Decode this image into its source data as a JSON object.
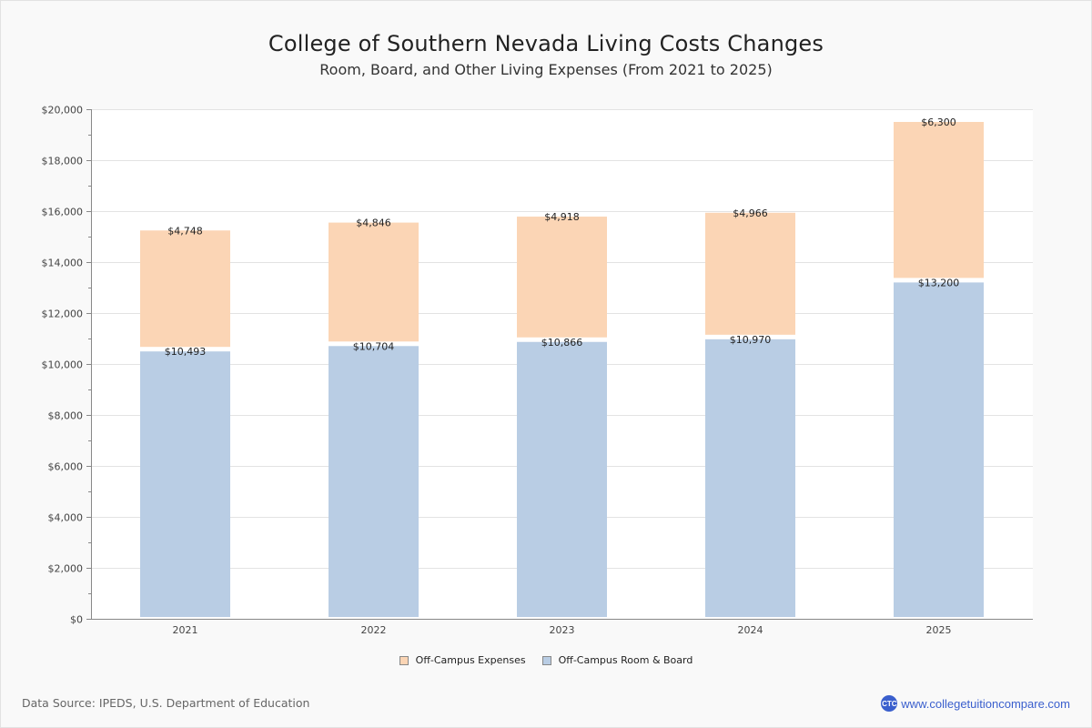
{
  "header": {
    "title": "College of Southern Nevada Living Costs Changes",
    "subtitle": "Room, Board, and Other Living Expenses (From 2021 to 2025)"
  },
  "footer": {
    "source": "Data Source: IPEDS, U.S. Department of Education",
    "brand_logo_text": "CTC",
    "brand_url_text": "www.collegetuitioncompare.com"
  },
  "colors": {
    "expenses": "#fbd5b5",
    "room_board": "#b9cde4",
    "grid": "#e3e3e3",
    "axis": "#888888",
    "brand": "#3a5fcd"
  },
  "chart_data": {
    "type": "bar",
    "stacked": true,
    "title": "College of Southern Nevada Living Costs Changes",
    "subtitle": "Room, Board, and Other Living Expenses (From 2021 to 2025)",
    "xlabel": "",
    "ylabel": "",
    "categories": [
      "2021",
      "2022",
      "2023",
      "2024",
      "2025"
    ],
    "series": [
      {
        "name": "Off-Campus Room & Board",
        "values": [
          10493,
          10704,
          10866,
          10970,
          13200
        ],
        "labels": [
          "$10,493",
          "$10,704",
          "$10,866",
          "$10,970",
          "$13,200"
        ],
        "color": "#b9cde4"
      },
      {
        "name": "Off-Campus Expenses",
        "values": [
          4748,
          4846,
          4918,
          4966,
          6300
        ],
        "labels": [
          "$4,748",
          "$4,846",
          "$4,918",
          "$4,966",
          "$6,300"
        ],
        "color": "#fbd5b5"
      }
    ],
    "ylim": [
      0,
      20000
    ],
    "yticks": [
      0,
      2000,
      4000,
      6000,
      8000,
      10000,
      12000,
      14000,
      16000,
      18000,
      20000
    ],
    "ytick_labels": [
      "$0",
      "$2,000",
      "$4,000",
      "$6,000",
      "$8,000",
      "$10,000",
      "$12,000",
      "$14,000",
      "$16,000",
      "$18,000",
      "$20,000"
    ],
    "grid": true,
    "legend": {
      "position": "bottom-center",
      "entries": [
        "Off-Campus Expenses",
        "Off-Campus Room & Board"
      ]
    }
  }
}
